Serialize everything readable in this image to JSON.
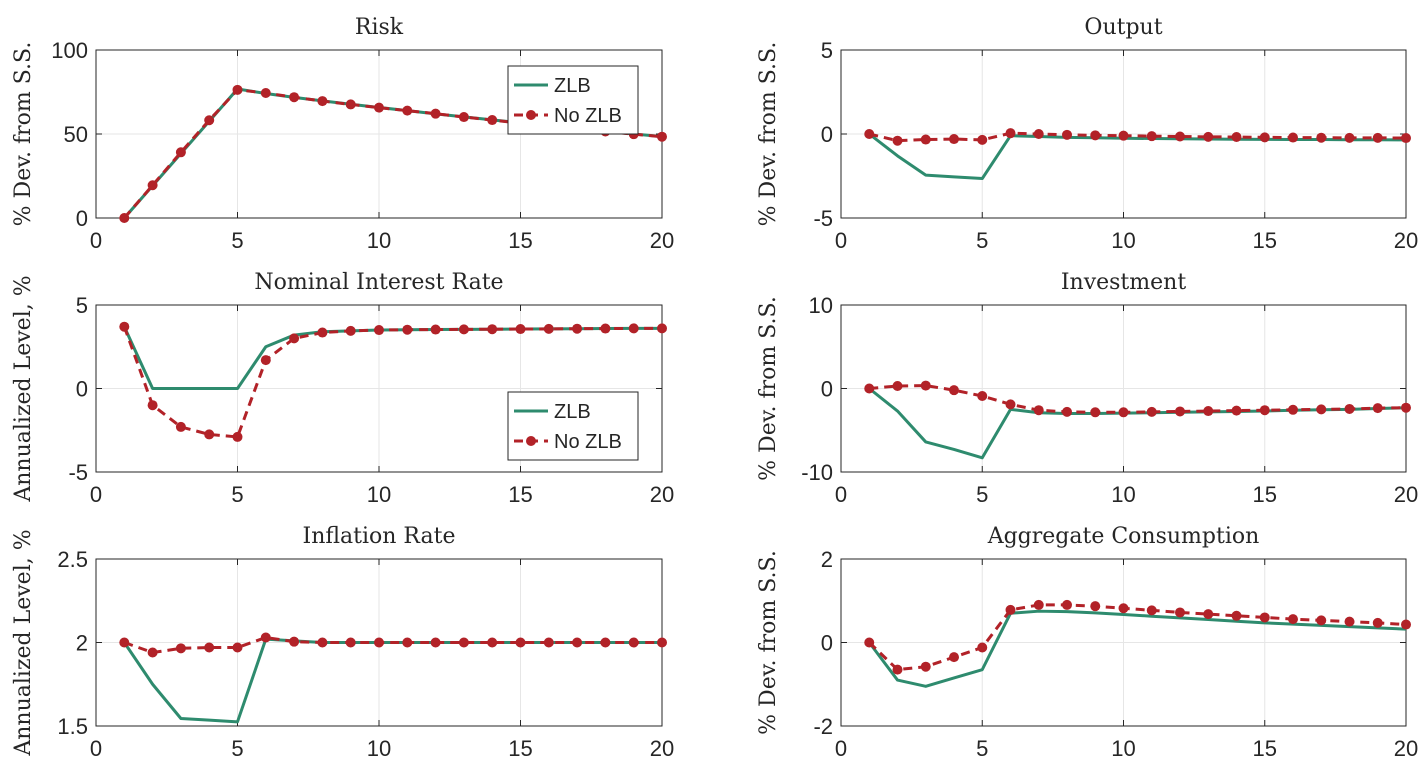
{
  "colors": {
    "zlb": "#2e8b6e",
    "nozlb": "#b22228"
  },
  "chart_data": [
    {
      "type": "line",
      "title": "Risk",
      "ylabel": "% Dev. from S.S.",
      "xlim": [
        0,
        20
      ],
      "ylim": [
        0,
        100
      ],
      "xticks": [
        0,
        5,
        10,
        15,
        20
      ],
      "yticks": [
        0,
        50,
        100
      ],
      "legend": "top-right",
      "x": [
        1,
        2,
        3,
        4,
        5,
        6,
        7,
        8,
        9,
        10,
        11,
        12,
        13,
        14,
        15,
        16,
        17,
        18,
        19,
        20
      ],
      "series": [
        {
          "name": "ZLB",
          "values": [
            0,
            19.2,
            38.4,
            57.6,
            76.8,
            74.1,
            71.8,
            69.7,
            67.7,
            65.8,
            63.9,
            62.0,
            60.2,
            58.4,
            56.6,
            54.9,
            53.2,
            51.6,
            50.0,
            48.5
          ]
        },
        {
          "name": "No ZLB",
          "values": [
            0,
            19.5,
            39.1,
            58.2,
            76.3,
            74.4,
            71.9,
            69.6,
            67.6,
            65.7,
            63.9,
            62.1,
            60.1,
            58.3,
            56.4,
            54.8,
            53.1,
            51.5,
            49.9,
            48.4
          ]
        }
      ]
    },
    {
      "type": "line",
      "title": "Output",
      "ylabel": "% Dev. from S.S.",
      "xlim": [
        0,
        20
      ],
      "ylim": [
        -5,
        5
      ],
      "xticks": [
        0,
        5,
        10,
        15,
        20
      ],
      "yticks": [
        -5,
        0,
        5
      ],
      "x": [
        1,
        2,
        3,
        4,
        5,
        6,
        7,
        8,
        9,
        10,
        11,
        12,
        13,
        14,
        15,
        16,
        17,
        18,
        19,
        20
      ],
      "series": [
        {
          "name": "ZLB",
          "values": [
            0,
            -1.3,
            -2.45,
            -2.55,
            -2.65,
            -0.1,
            -0.15,
            -0.2,
            -0.22,
            -0.25,
            -0.27,
            -0.28,
            -0.3,
            -0.31,
            -0.32,
            -0.33,
            -0.33,
            -0.34,
            -0.34,
            -0.35
          ]
        },
        {
          "name": "No ZLB",
          "values": [
            0,
            -0.4,
            -0.33,
            -0.3,
            -0.35,
            0.05,
            0,
            -0.05,
            -0.08,
            -0.1,
            -0.13,
            -0.15,
            -0.17,
            -0.18,
            -0.2,
            -0.21,
            -0.22,
            -0.23,
            -0.23,
            -0.24
          ]
        }
      ]
    },
    {
      "type": "line",
      "title": "Nominal Interest Rate",
      "ylabel": "Annualized Level, %",
      "xlim": [
        0,
        20
      ],
      "ylim": [
        -5,
        5
      ],
      "xticks": [
        0,
        5,
        10,
        15,
        20
      ],
      "yticks": [
        -5,
        0,
        5
      ],
      "legend": "bottom-right",
      "x": [
        1,
        2,
        3,
        4,
        5,
        6,
        7,
        8,
        9,
        10,
        11,
        12,
        13,
        14,
        15,
        16,
        17,
        18,
        19,
        20
      ],
      "series": [
        {
          "name": "ZLB",
          "values": [
            3.7,
            0,
            0,
            0,
            0,
            2.5,
            3.2,
            3.4,
            3.45,
            3.5,
            3.52,
            3.53,
            3.54,
            3.55,
            3.56,
            3.57,
            3.58,
            3.59,
            3.6,
            3.6
          ]
        },
        {
          "name": "No ZLB",
          "values": [
            3.7,
            -1.0,
            -2.3,
            -2.75,
            -2.9,
            1.7,
            3.0,
            3.35,
            3.45,
            3.5,
            3.52,
            3.53,
            3.54,
            3.55,
            3.56,
            3.57,
            3.58,
            3.59,
            3.6,
            3.6
          ]
        }
      ]
    },
    {
      "type": "line",
      "title": "Investment",
      "ylabel": "% Dev. from S.S.",
      "xlim": [
        0,
        20
      ],
      "ylim": [
        -10,
        10
      ],
      "xticks": [
        0,
        5,
        10,
        15,
        20
      ],
      "yticks": [
        -10,
        0,
        10
      ],
      "x": [
        1,
        2,
        3,
        4,
        5,
        6,
        7,
        8,
        9,
        10,
        11,
        12,
        13,
        14,
        15,
        16,
        17,
        18,
        19,
        20
      ],
      "series": [
        {
          "name": "ZLB",
          "values": [
            0,
            -2.7,
            -6.4,
            -7.3,
            -8.3,
            -2.5,
            -2.9,
            -3.0,
            -3.0,
            -2.95,
            -2.9,
            -2.85,
            -2.8,
            -2.75,
            -2.7,
            -2.6,
            -2.55,
            -2.5,
            -2.4,
            -2.3
          ]
        },
        {
          "name": "No ZLB",
          "values": [
            0,
            0.3,
            0.35,
            -0.2,
            -0.9,
            -1.9,
            -2.6,
            -2.8,
            -2.85,
            -2.85,
            -2.8,
            -2.75,
            -2.7,
            -2.65,
            -2.6,
            -2.55,
            -2.5,
            -2.45,
            -2.35,
            -2.3
          ]
        }
      ]
    },
    {
      "type": "line",
      "title": "Inflation Rate",
      "ylabel": "Annualized Level, %",
      "xlim": [
        0,
        20
      ],
      "ylim": [
        1.5,
        2.5
      ],
      "xticks": [
        0,
        5,
        10,
        15,
        20
      ],
      "yticks": [
        1.5,
        2,
        2.5
      ],
      "x": [
        1,
        2,
        3,
        4,
        5,
        6,
        7,
        8,
        9,
        10,
        11,
        12,
        13,
        14,
        15,
        16,
        17,
        18,
        19,
        20
      ],
      "series": [
        {
          "name": "ZLB",
          "values": [
            2.0,
            1.75,
            1.545,
            1.535,
            1.525,
            2.02,
            2.01,
            2.0,
            2.0,
            2.0,
            2.0,
            2.0,
            2.0,
            2.0,
            2.0,
            2.0,
            2.0,
            2.0,
            2.0,
            2.0
          ]
        },
        {
          "name": "No ZLB",
          "values": [
            2.0,
            1.94,
            1.965,
            1.97,
            1.97,
            2.03,
            2.005,
            2.0,
            2.0,
            2.0,
            2.0,
            2.0,
            2.0,
            2.0,
            2.0,
            2.0,
            2.0,
            2.0,
            2.0,
            2.0
          ]
        }
      ]
    },
    {
      "type": "line",
      "title": "Aggregate Consumption",
      "ylabel": "% Dev. from S.S.",
      "xlim": [
        0,
        20
      ],
      "ylim": [
        -2,
        2
      ],
      "xticks": [
        0,
        5,
        10,
        15,
        20
      ],
      "yticks": [
        -2,
        0,
        2
      ],
      "x": [
        1,
        2,
        3,
        4,
        5,
        6,
        7,
        8,
        9,
        10,
        11,
        12,
        13,
        14,
        15,
        16,
        17,
        18,
        19,
        20
      ],
      "series": [
        {
          "name": "ZLB",
          "values": [
            0,
            -0.9,
            -1.05,
            -0.85,
            -0.65,
            0.7,
            0.75,
            0.74,
            0.71,
            0.67,
            0.63,
            0.59,
            0.55,
            0.51,
            0.47,
            0.44,
            0.41,
            0.38,
            0.35,
            0.32
          ]
        },
        {
          "name": "No ZLB",
          "values": [
            0,
            -0.65,
            -0.58,
            -0.35,
            -0.12,
            0.78,
            0.9,
            0.9,
            0.87,
            0.82,
            0.77,
            0.72,
            0.68,
            0.64,
            0.6,
            0.56,
            0.53,
            0.5,
            0.47,
            0.43
          ]
        }
      ]
    }
  ]
}
